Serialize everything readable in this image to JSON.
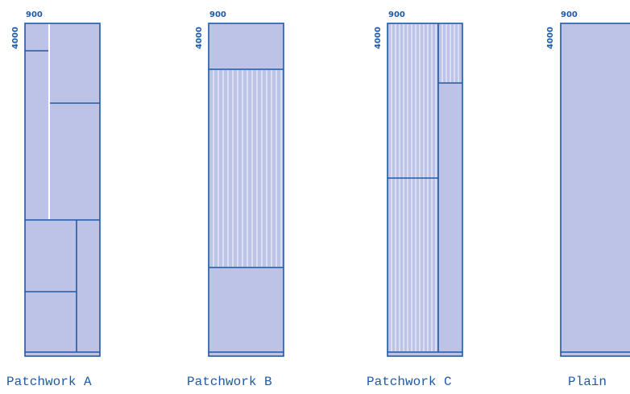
{
  "width_label": "900",
  "height_label": "4000",
  "panels": [
    {
      "caption": "Patchwork A"
    },
    {
      "caption": "Patchwork B"
    },
    {
      "caption": "Patchwork C"
    },
    {
      "caption": "Plain"
    }
  ],
  "colors": {
    "fill": "#bcc3e6",
    "outline": "#1f5aa6",
    "stripe": "#ffffff"
  }
}
